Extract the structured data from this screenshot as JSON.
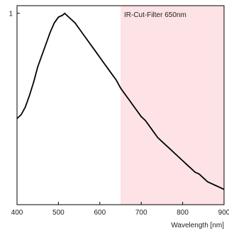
{
  "chart_data": {
    "type": "line",
    "title": "",
    "xlabel": "Wavelength [nm]",
    "ylabel": "",
    "xlim": [
      400,
      900
    ],
    "ylim": [
      0,
      1.04
    ],
    "xticks": [
      400,
      500,
      600,
      700,
      800,
      900
    ],
    "xtick_labels": [
      "400",
      "500",
      "600",
      "700",
      "800",
      "900"
    ],
    "yticks": [
      1
    ],
    "ytick_labels": [
      "1"
    ],
    "grid": false,
    "series": [
      {
        "name": "",
        "color": "#000000",
        "x": [
          400,
          410,
          420,
          430,
          440,
          450,
          460,
          470,
          480,
          490,
          500,
          510,
          515,
          520,
          530,
          540,
          550,
          560,
          570,
          580,
          590,
          600,
          610,
          620,
          630,
          640,
          650,
          660,
          670,
          680,
          690,
          700,
          710,
          720,
          730,
          740,
          750,
          760,
          770,
          780,
          790,
          800,
          810,
          820,
          830,
          840,
          850,
          860,
          870,
          880,
          890,
          900
        ],
        "y": [
          0.45,
          0.47,
          0.51,
          0.57,
          0.64,
          0.72,
          0.78,
          0.84,
          0.9,
          0.95,
          0.98,
          0.99,
          1.0,
          0.99,
          0.97,
          0.95,
          0.92,
          0.89,
          0.86,
          0.83,
          0.8,
          0.77,
          0.74,
          0.71,
          0.68,
          0.65,
          0.61,
          0.58,
          0.55,
          0.52,
          0.49,
          0.46,
          0.44,
          0.41,
          0.38,
          0.35,
          0.33,
          0.31,
          0.29,
          0.27,
          0.25,
          0.23,
          0.21,
          0.19,
          0.17,
          0.16,
          0.14,
          0.12,
          0.11,
          0.1,
          0.09,
          0.08
        ]
      }
    ],
    "highlight_band": {
      "x_start": 650,
      "x_end": 900,
      "color": "#fde3e6",
      "label": "IR-Cut-Filter 650nm"
    }
  }
}
